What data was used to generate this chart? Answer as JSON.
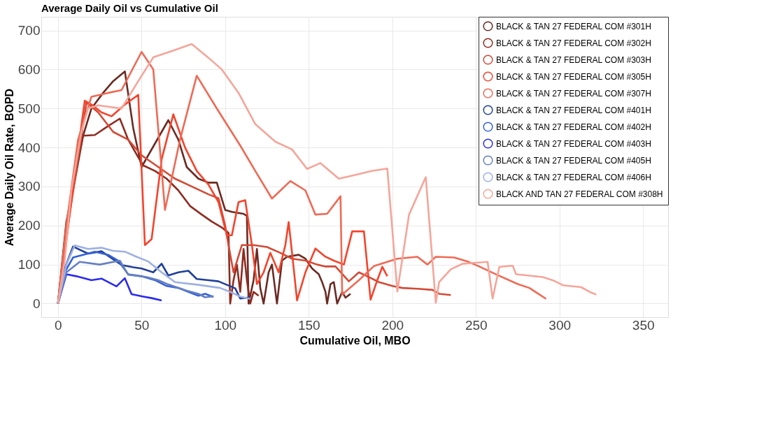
{
  "chart_data": {
    "type": "line",
    "title": "Average Daily Oil vs Cumulative Oil",
    "xlabel": "Cumulative Oil, MBO",
    "ylabel": "Average Daily Oil Rate, BOPD",
    "xlim": [
      -10,
      365
    ],
    "ylim": [
      -35,
      735
    ],
    "xticks": [
      0,
      50,
      100,
      150,
      200,
      250,
      300,
      350
    ],
    "yticks": [
      0,
      100,
      200,
      300,
      400,
      500,
      600,
      700
    ],
    "grid": true,
    "legend": "top right",
    "series": [
      {
        "name": "BLACK & TAN 27 FEDERAL COM #301H",
        "color": "#6b2a22",
        "x": [
          0,
          5,
          9,
          15,
          20,
          27,
          33,
          40,
          45,
          50,
          58,
          66,
          72,
          77,
          84,
          90,
          95,
          100,
          104,
          111,
          113,
          114,
          117,
          119,
          121,
          123,
          126,
          128,
          131,
          134,
          137,
          144,
          148,
          152,
          156,
          158,
          160,
          161,
          163,
          165,
          167,
          170,
          172,
          175
        ],
        "values": [
          0,
          210,
          290,
          430,
          500,
          540,
          570,
          595,
          450,
          350,
          410,
          470,
          420,
          350,
          320,
          310,
          310,
          240,
          235,
          230,
          225,
          0,
          60,
          140,
          40,
          0,
          80,
          100,
          0,
          110,
          120,
          125,
          115,
          90,
          75,
          55,
          30,
          0,
          50,
          55,
          0,
          30,
          15,
          25
        ]
      },
      {
        "name": "BLACK & TAN 27 FEDERAL COM #302H",
        "color": "#8e2c20",
        "x": [
          0,
          5,
          10,
          15,
          22,
          30,
          37,
          42,
          48,
          51,
          58,
          65,
          72,
          79,
          86,
          92,
          98,
          102,
          103,
          105,
          107,
          109,
          111,
          113,
          115,
          117,
          120
        ],
        "values": [
          0,
          200,
          330,
          430,
          432,
          455,
          474,
          420,
          375,
          354,
          340,
          320,
          290,
          250,
          228,
          210,
          195,
          181,
          0,
          60,
          100,
          30,
          140,
          60,
          0,
          30,
          20
        ]
      },
      {
        "name": "BLACK & TAN 27 FEDERAL COM #303H",
        "color": "#d24a36",
        "x": [
          0,
          6,
          17,
          24,
          33,
          42,
          50,
          60,
          70,
          80,
          90,
          96,
          100,
          102,
          105,
          110,
          117,
          125,
          133,
          140,
          148,
          155,
          160,
          166,
          174,
          180,
          185,
          192,
          200,
          206,
          215,
          224,
          228,
          235
        ],
        "values": [
          0,
          200,
          515,
          490,
          440,
          420,
          380,
          350,
          320,
          300,
          280,
          270,
          200,
          150,
          80,
          150,
          150,
          145,
          130,
          115,
          110,
          100,
          95,
          95,
          57,
          80,
          70,
          55,
          45,
          40,
          38,
          35,
          25,
          22
        ]
      },
      {
        "name": "BLACK & TAN 27 FEDERAL COM #305H",
        "color": "#f5432c",
        "x": [
          0,
          5,
          10,
          16,
          20,
          26,
          32,
          40,
          48,
          52,
          56,
          62,
          69,
          76,
          83,
          90,
          96,
          101,
          104,
          108,
          112,
          116,
          119,
          123,
          127,
          132,
          136,
          138,
          141,
          143,
          148,
          154,
          160,
          165,
          171,
          176,
          183,
          187,
          191,
          194,
          197
        ],
        "values": [
          0,
          160,
          330,
          520,
          510,
          490,
          480,
          510,
          535,
          150,
          165,
          370,
          485,
          400,
          340,
          305,
          260,
          175,
          175,
          260,
          265,
          150,
          50,
          80,
          130,
          80,
          150,
          209,
          90,
          8,
          80,
          141,
          120,
          110,
          100,
          185,
          185,
          10,
          60,
          94,
          70
        ]
      },
      {
        "name": "BLACK & TAN 27 FEDERAL COM #307H",
        "color": "#ee6a55",
        "x": [
          0,
          5,
          12,
          20,
          30,
          38,
          50,
          57,
          64,
          73,
          83,
          95,
          109,
          118,
          128,
          139,
          148,
          154,
          161,
          169,
          170,
          180,
          189,
          203,
          215,
          221,
          226,
          237,
          245,
          252,
          262,
          275,
          282,
          292
        ],
        "values": [
          0,
          200,
          420,
          530,
          540,
          547,
          645,
          600,
          240,
          420,
          584,
          500,
          405,
          340,
          269,
          314,
          290,
          228,
          230,
          275,
          23,
          60,
          96,
          115,
          120,
          100,
          120,
          118,
          108,
          95,
          75,
          50,
          40,
          12
        ]
      },
      {
        "name": "BLACK & TAN 27 FEDERAL COM #401H",
        "color": "#1f3f9a",
        "x": [
          0,
          4,
          9,
          18,
          26,
          38,
          45,
          50,
          57,
          62,
          66,
          72,
          78,
          83,
          90,
          96,
          101,
          106,
          109,
          115
        ],
        "values": [
          0,
          90,
          146,
          128,
          134,
          99,
          93,
          90,
          80,
          102,
          72,
          80,
          84,
          63,
          60,
          57,
          48,
          39,
          13,
          16
        ]
      },
      {
        "name": "BLACK & TAN 27 FEDERAL COM #402H",
        "color": "#3560d8",
        "x": [
          0,
          4,
          9,
          15,
          22,
          30,
          36,
          42,
          50,
          58,
          65,
          72,
          78,
          84,
          88,
          93
        ],
        "values": [
          0,
          80,
          118,
          125,
          133,
          125,
          110,
          75,
          70,
          60,
          45,
          40,
          30,
          20,
          25,
          17
        ]
      },
      {
        "name": "BLACK & TAN 27 FEDERAL COM #403H",
        "color": "#2b2bef",
        "x": [
          0,
          5,
          11,
          20,
          26,
          35,
          40,
          44,
          51,
          56,
          62
        ],
        "values": [
          0,
          75,
          70,
          60,
          64,
          44,
          65,
          24,
          18,
          14,
          8
        ]
      },
      {
        "name": "BLACK & TAN 27 FEDERAL COM #405H",
        "color": "#6680c0",
        "x": [
          0,
          5,
          13,
          25,
          37,
          42,
          53,
          60,
          66,
          77,
          84,
          88,
          93
        ],
        "values": [
          0,
          80,
          107,
          100,
          110,
          74,
          68,
          60,
          49,
          33,
          25,
          16,
          19
        ]
      },
      {
        "name": "BLACK & TAN 27 FEDERAL COM #406H",
        "color": "#9db0e0",
        "x": [
          0,
          5,
          10,
          18,
          26,
          33,
          40,
          47,
          54,
          62,
          70,
          84,
          97,
          103,
          109,
          115
        ],
        "values": [
          0,
          100,
          149,
          140,
          143,
          135,
          133,
          120,
          108,
          80,
          55,
          48,
          40,
          30,
          18,
          12
        ]
      },
      {
        "name": "BLACK AND TAN 27 FEDERAL COM #308H",
        "color": "#f4a59a",
        "x": [
          0,
          4,
          8,
          14,
          18,
          24,
          38,
          48,
          57,
          70,
          80,
          90,
          98,
          108,
          118,
          130,
          140,
          149,
          157,
          168,
          178,
          188,
          197,
          203,
          210,
          220,
          226,
          228,
          235,
          242,
          257,
          260,
          264,
          272,
          274,
          290,
          297,
          302,
          313,
          318,
          322
        ],
        "values": [
          0,
          110,
          290,
          440,
          500,
          508,
          500,
          570,
          631,
          650,
          665,
          630,
          600,
          540,
          460,
          415,
          395,
          345,
          360,
          320,
          330,
          340,
          346,
          31,
          228,
          324,
          2,
          55,
          88,
          102,
          107,
          13,
          94,
          97,
          75,
          68,
          58,
          47,
          42,
          30,
          23
        ]
      }
    ]
  }
}
